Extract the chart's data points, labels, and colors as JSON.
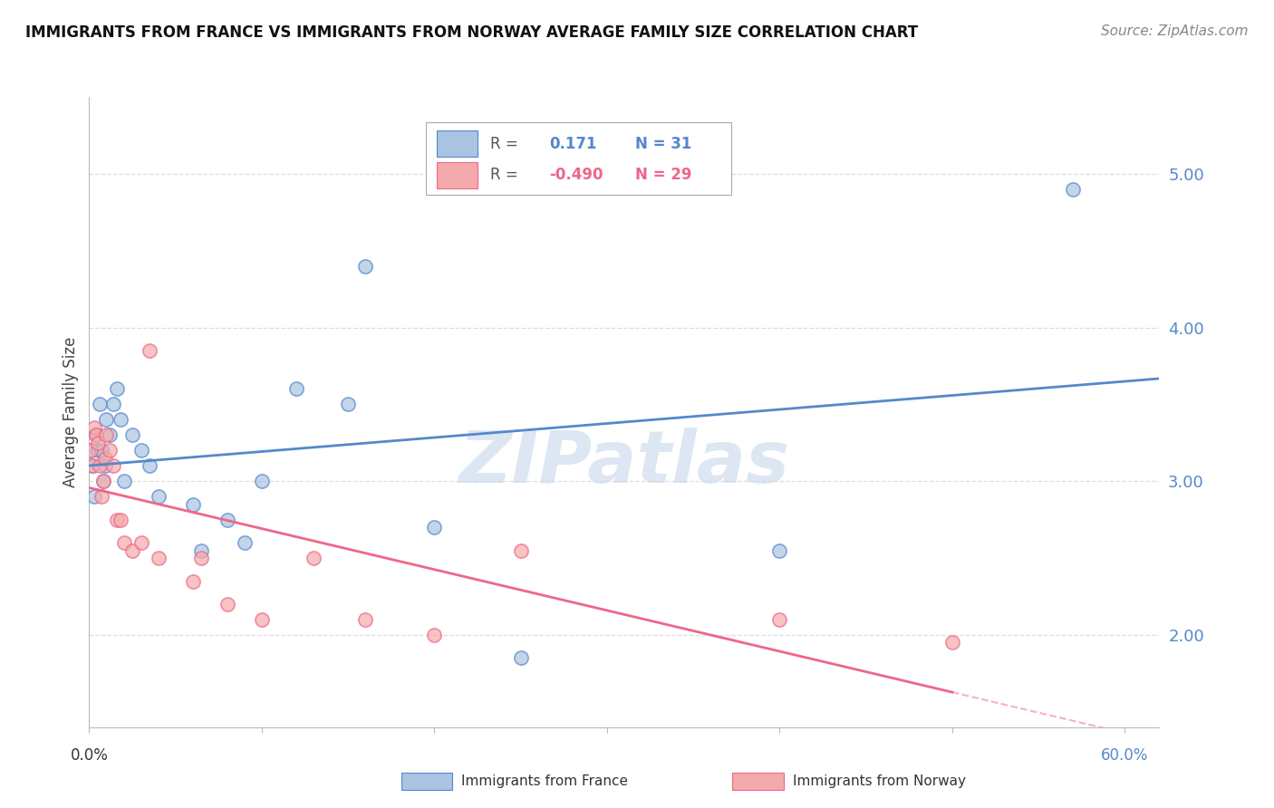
{
  "title": "IMMIGRANTS FROM FRANCE VS IMMIGRANTS FROM NORWAY AVERAGE FAMILY SIZE CORRELATION CHART",
  "source": "Source: ZipAtlas.com",
  "ylabel": "Average Family Size",
  "france_R": 0.171,
  "france_N": 31,
  "norway_R": -0.49,
  "norway_N": 29,
  "blue_color": "#A8C4E0",
  "pink_color": "#F4AAAA",
  "blue_line_color": "#5588CC",
  "pink_line_color": "#EE6688",
  "france_x": [
    0.001,
    0.002,
    0.003,
    0.004,
    0.005,
    0.006,
    0.007,
    0.008,
    0.009,
    0.01,
    0.012,
    0.014,
    0.016,
    0.018,
    0.02,
    0.025,
    0.03,
    0.035,
    0.04,
    0.06,
    0.065,
    0.08,
    0.09,
    0.1,
    0.12,
    0.15,
    0.16,
    0.2,
    0.25,
    0.4,
    0.57
  ],
  "france_y": [
    3.2,
    3.1,
    2.9,
    3.3,
    3.2,
    3.5,
    3.2,
    3.0,
    3.1,
    3.4,
    3.3,
    3.5,
    3.6,
    3.4,
    3.0,
    3.3,
    3.2,
    3.1,
    2.9,
    2.85,
    2.55,
    2.75,
    2.6,
    3.0,
    3.6,
    3.5,
    4.4,
    2.7,
    1.85,
    2.55,
    4.9
  ],
  "norway_x": [
    0.001,
    0.002,
    0.003,
    0.004,
    0.005,
    0.006,
    0.007,
    0.008,
    0.009,
    0.01,
    0.012,
    0.014,
    0.016,
    0.018,
    0.02,
    0.025,
    0.03,
    0.035,
    0.04,
    0.06,
    0.065,
    0.08,
    0.1,
    0.13,
    0.16,
    0.2,
    0.25,
    0.4,
    0.5
  ],
  "norway_y": [
    3.2,
    3.1,
    3.35,
    3.3,
    3.25,
    3.1,
    2.9,
    3.0,
    3.15,
    3.3,
    3.2,
    3.1,
    2.75,
    2.75,
    2.6,
    2.55,
    2.6,
    3.85,
    2.5,
    2.35,
    2.5,
    2.2,
    2.1,
    2.5,
    2.1,
    2.0,
    2.55,
    2.1,
    1.95
  ],
  "xlim": [
    0.0,
    0.62
  ],
  "ylim": [
    1.4,
    5.5
  ],
  "xticks": [
    0.0,
    0.1,
    0.2,
    0.3,
    0.4,
    0.5,
    0.6
  ],
  "right_yticks": [
    2.0,
    3.0,
    4.0,
    5.0
  ],
  "watermark": "ZIPatlas",
  "watermark_color": "#C5D8EC",
  "background_color": "#FFFFFF",
  "grid_color": "#DDDDDD",
  "dot_size": 120
}
